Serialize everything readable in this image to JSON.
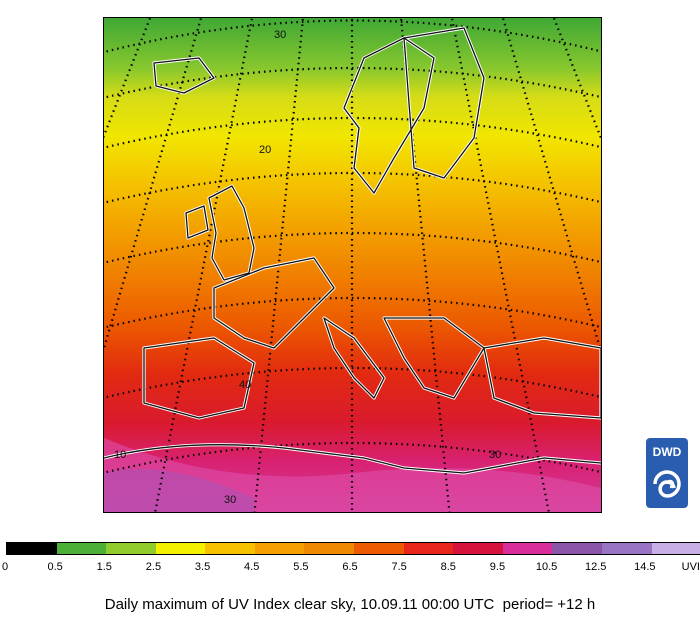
{
  "caption": "Daily maximum of UV Index clear sky, 10.09.11 00:00 UTC  period= +12 h",
  "logo": {
    "text": "DWD",
    "color": "#2a5db0"
  },
  "colorbar": {
    "labels": [
      "0",
      "0.5",
      "1.5",
      "2.5",
      "3.5",
      "4.5",
      "5.5",
      "6.5",
      "7.5",
      "8.5",
      "9.5",
      "10.5",
      "12.5",
      "14.5",
      "UVI"
    ],
    "colors": [
      "#000000",
      "#4caf38",
      "#92cc2c",
      "#f3f000",
      "#f6c200",
      "#f5a000",
      "#ef8a00",
      "#ee5a00",
      "#e8261a",
      "#d6133d",
      "#d82d9a",
      "#8a55a8",
      "#9a74c4",
      "#c8b0e6"
    ]
  },
  "map": {
    "grid_labels": [
      {
        "text": "30"
      },
      {
        "text": "20"
      },
      {
        "text": "40"
      },
      {
        "text": "30"
      },
      {
        "text": "30"
      },
      {
        "text": "10"
      }
    ]
  }
}
